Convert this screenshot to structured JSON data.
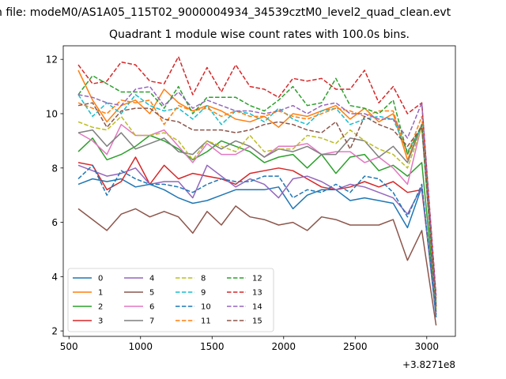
{
  "chart_data": {
    "type": "line",
    "suptitle": "n file: modeM0/AS1A05_115T02_9000004934_34539cztM0_level2_quad_clean.evt",
    "title": "Quadrant 1 module wise count rates with 100.0s bins.",
    "xlabel": "",
    "ylabel": "",
    "x_offset_label": "+3.8271e8",
    "xlim": [
      460,
      3200
    ],
    "ylim": [
      1.8,
      12.5
    ],
    "xticks": [
      500,
      1000,
      1500,
      2000,
      2500,
      3000
    ],
    "yticks": [
      2,
      4,
      6,
      8,
      10,
      12
    ],
    "x": [
      565,
      665,
      765,
      865,
      965,
      1065,
      1165,
      1265,
      1365,
      1465,
      1565,
      1665,
      1765,
      1865,
      1965,
      2065,
      2165,
      2265,
      2365,
      2465,
      2565,
      2665,
      2765,
      2865,
      2965,
      3065
    ],
    "legend_position": "lower-left",
    "series": [
      {
        "name": "0",
        "color": "#1f77b4",
        "dash": "solid",
        "values": [
          7.4,
          7.6,
          7.5,
          7.6,
          7.3,
          7.4,
          7.2,
          6.9,
          6.7,
          6.8,
          7.0,
          7.2,
          7.2,
          7.2,
          7.3,
          6.5,
          7.0,
          7.2,
          7.2,
          6.8,
          6.9,
          6.8,
          6.7,
          5.8,
          7.3,
          2.5
        ]
      },
      {
        "name": "1",
        "color": "#ff7f0e",
        "dash": "solid",
        "values": [
          11.6,
          10.5,
          9.7,
          10.3,
          10.5,
          10.0,
          10.9,
          10.4,
          10.1,
          10.3,
          10.1,
          9.8,
          9.7,
          9.9,
          9.5,
          10.0,
          9.9,
          10.1,
          10.3,
          9.8,
          10.2,
          9.7,
          10.0,
          8.3,
          9.6,
          3.0
        ]
      },
      {
        "name": "2",
        "color": "#2ca02c",
        "dash": "solid",
        "values": [
          8.6,
          9.1,
          8.3,
          8.5,
          8.8,
          9.2,
          9.0,
          8.7,
          8.3,
          8.6,
          9.0,
          8.8,
          8.6,
          8.2,
          8.4,
          8.5,
          8.0,
          8.5,
          7.8,
          8.4,
          8.5,
          7.9,
          8.1,
          7.7,
          8.2,
          2.8
        ]
      },
      {
        "name": "3",
        "color": "#d62728",
        "dash": "solid",
        "values": [
          8.2,
          8.1,
          7.2,
          7.5,
          8.4,
          7.4,
          8.1,
          7.6,
          7.8,
          7.7,
          7.6,
          7.4,
          7.8,
          7.9,
          8.0,
          7.9,
          7.6,
          7.3,
          7.2,
          7.3,
          7.5,
          7.3,
          7.5,
          7.1,
          7.2,
          2.7
        ]
      },
      {
        "name": "4",
        "color": "#9467bd",
        "dash": "solid",
        "values": [
          8.1,
          7.9,
          7.7,
          7.8,
          8.0,
          7.4,
          7.5,
          7.5,
          6.9,
          8.1,
          7.7,
          7.3,
          7.6,
          7.4,
          6.9,
          7.6,
          7.7,
          7.5,
          7.2,
          7.4,
          7.3,
          7.1,
          6.9,
          6.3,
          7.3,
          2.6
        ]
      },
      {
        "name": "5",
        "color": "#8c564b",
        "dash": "solid",
        "values": [
          6.5,
          6.1,
          5.7,
          6.3,
          6.5,
          6.2,
          6.4,
          6.2,
          5.6,
          6.4,
          5.9,
          6.6,
          6.2,
          6.1,
          5.9,
          6.0,
          5.7,
          6.2,
          6.1,
          5.9,
          5.9,
          5.9,
          6.1,
          4.6,
          5.7,
          2.2
        ]
      },
      {
        "name": "6",
        "color": "#e377c2",
        "dash": "solid",
        "values": [
          9.3,
          9.0,
          8.5,
          9.6,
          9.2,
          9.2,
          9.4,
          8.8,
          8.2,
          8.9,
          8.5,
          8.5,
          8.8,
          8.4,
          8.8,
          8.8,
          8.9,
          8.5,
          8.6,
          8.6,
          8.2,
          8.4,
          8.0,
          7.4,
          9.6,
          2.9
        ]
      },
      {
        "name": "7",
        "color": "#7f7f7f",
        "dash": "solid",
        "values": [
          9.3,
          9.4,
          8.8,
          9.3,
          8.7,
          8.9,
          9.1,
          8.6,
          8.5,
          9.0,
          8.7,
          9.0,
          8.8,
          8.4,
          8.7,
          8.6,
          8.8,
          8.5,
          8.5,
          9.1,
          9.0,
          8.4,
          8.8,
          8.2,
          9.6,
          2.7
        ]
      },
      {
        "name": "8",
        "color": "#bcbd22",
        "dash": "dashed",
        "values": [
          9.7,
          9.5,
          9.4,
          9.9,
          9.2,
          9.2,
          9.3,
          9.0,
          8.3,
          9.0,
          8.8,
          8.6,
          9.2,
          8.6,
          8.7,
          8.7,
          9.2,
          9.1,
          8.9,
          9.4,
          9.0,
          8.7,
          8.5,
          8.0,
          9.5,
          2.8
        ]
      },
      {
        "name": "9",
        "color": "#17becf",
        "dash": "dashed",
        "values": [
          10.7,
          9.9,
          10.4,
          10.0,
          10.7,
          10.3,
          10.1,
          10.2,
          9.8,
          10.3,
          9.6,
          10.1,
          10.0,
          9.7,
          10.2,
          9.8,
          9.6,
          10.1,
          10.2,
          9.6,
          9.8,
          9.9,
          9.8,
          8.6,
          9.5,
          3.0
        ]
      },
      {
        "name": "10",
        "color": "#1f77b4",
        "dash": "dashed",
        "values": [
          7.6,
          8.1,
          7.0,
          7.9,
          7.6,
          7.4,
          7.4,
          7.3,
          7.1,
          7.4,
          7.6,
          7.5,
          7.5,
          7.7,
          7.7,
          6.9,
          7.2,
          7.1,
          7.4,
          7.1,
          7.7,
          7.6,
          7.1,
          6.2,
          7.4,
          2.6
        ]
      },
      {
        "name": "11",
        "color": "#ff7f0e",
        "dash": "dashed",
        "values": [
          10.4,
          10.2,
          10.0,
          10.5,
          10.4,
          10.5,
          9.6,
          10.3,
          10.1,
          10.2,
          9.9,
          10.1,
          9.9,
          9.9,
          10.1,
          9.9,
          9.8,
          10.0,
          10.2,
          10.1,
          9.9,
          10.1,
          10.1,
          8.5,
          9.9,
          3.1
        ]
      },
      {
        "name": "12",
        "color": "#2ca02c",
        "dash": "dashed",
        "values": [
          10.7,
          11.4,
          11.1,
          10.8,
          10.8,
          10.8,
          10.2,
          11.0,
          10.0,
          10.6,
          10.6,
          10.6,
          10.3,
          10.1,
          10.5,
          11.0,
          10.3,
          10.4,
          11.3,
          10.3,
          10.2,
          10.0,
          10.5,
          8.5,
          9.6,
          3.0
        ]
      },
      {
        "name": "13",
        "color": "#d62728",
        "dash": "dashed",
        "values": [
          11.8,
          11.1,
          11.2,
          11.9,
          11.8,
          11.2,
          11.1,
          12.1,
          10.7,
          11.7,
          10.8,
          11.8,
          11.0,
          10.9,
          10.6,
          11.3,
          11.2,
          11.3,
          10.9,
          10.9,
          11.6,
          10.4,
          11.0,
          10.0,
          10.4,
          3.3
        ]
      },
      {
        "name": "14",
        "color": "#9467bd",
        "dash": "dashed",
        "values": [
          10.7,
          10.6,
          10.4,
          10.3,
          10.9,
          11.0,
          10.3,
          10.8,
          10.2,
          10.5,
          10.3,
          10.1,
          10.1,
          10.0,
          10.1,
          10.3,
          10.0,
          10.3,
          10.4,
          10.0,
          10.0,
          9.8,
          9.8,
          9.1,
          10.4,
          3.2
        ]
      },
      {
        "name": "15",
        "color": "#8c564b",
        "dash": "dashed",
        "values": [
          10.3,
          10.4,
          9.5,
          10.1,
          10.2,
          10.2,
          9.8,
          9.7,
          9.4,
          9.4,
          9.4,
          9.3,
          9.4,
          9.6,
          9.7,
          9.6,
          9.4,
          9.3,
          9.7,
          8.7,
          9.9,
          9.6,
          9.4,
          8.8,
          9.5,
          2.9
        ]
      }
    ]
  }
}
